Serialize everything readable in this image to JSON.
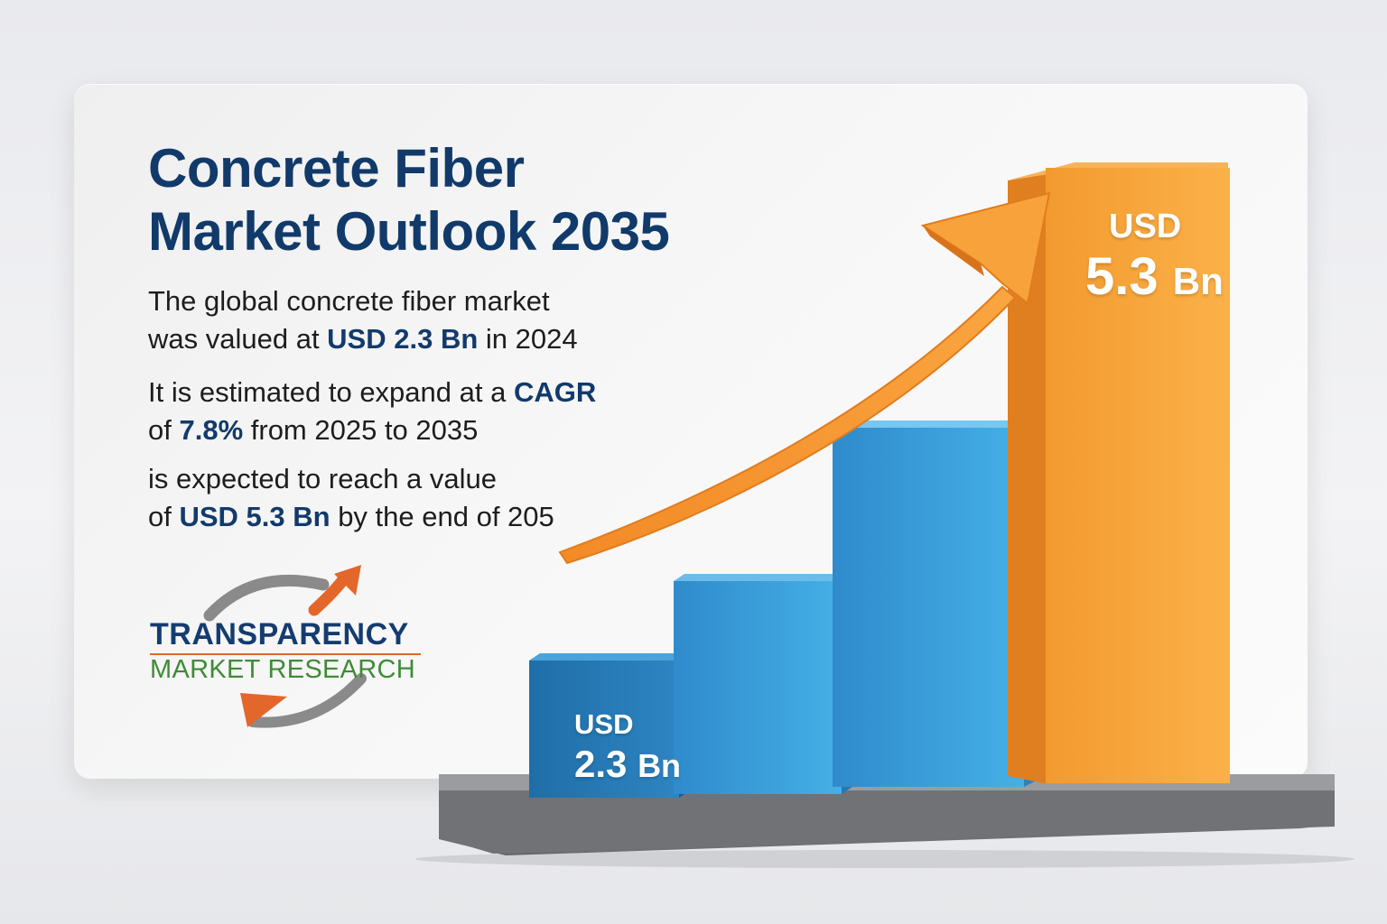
{
  "title_line1": "Concrete Fiber",
  "title_line2": "Market Outlook 2035",
  "para1": {
    "line1": "The global concrete fiber market",
    "line2_pre": "was valued at ",
    "line2_bold": "USD 2.3 Bn",
    "line2_post": " in 2024"
  },
  "para2": {
    "line1_pre": "It is estimated to expand at a ",
    "line1_bold": "CAGR",
    "line2_pre": "of ",
    "line2_bold": "7.8%",
    "line2_post": " from 2025 to 2035"
  },
  "para3": {
    "line1": "is expected to reach a value",
    "line2_pre": "of ",
    "line2_bold": "USD 5.3 Bn",
    "line2_post": " by the end of 205"
  },
  "logo": {
    "name": "TRANSPARENCY",
    "sub": "MARKET RESEARCH"
  },
  "bars": {
    "first": {
      "currency": "USD",
      "value": "2.3",
      "unit": "Bn"
    },
    "last": {
      "currency": "USD",
      "value": "5.3",
      "unit": "Bn"
    }
  },
  "colors": {
    "title": "#113a6a",
    "blue_bar": "#3a9ad9",
    "orange_bar": "#f7a53a",
    "arrow": "#f79a34",
    "logo_orange": "#e3672a",
    "logo_green": "#3f8b37",
    "logo_gray": "#8a8a8a"
  },
  "icons": [
    "growth-arrow-icon",
    "logo-swoosh-icon"
  ]
}
